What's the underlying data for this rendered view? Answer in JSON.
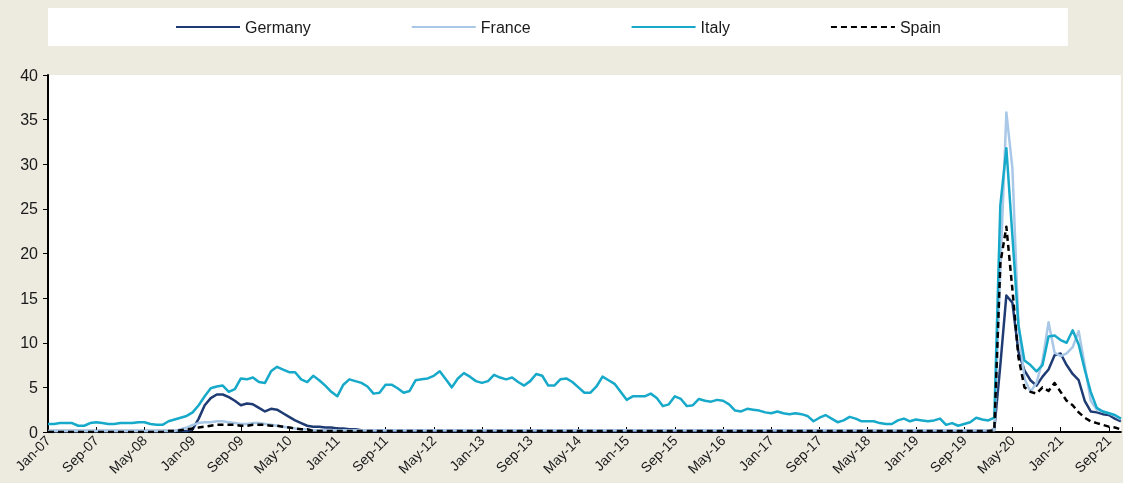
{
  "chart_data": {
    "type": "line",
    "categories": [
      "Jan-07",
      null,
      null,
      null,
      null,
      null,
      null,
      null,
      "Sep-07",
      null,
      null,
      null,
      null,
      null,
      null,
      null,
      "May-08",
      null,
      null,
      null,
      null,
      null,
      null,
      null,
      "Jan-09",
      null,
      null,
      null,
      null,
      null,
      null,
      null,
      "Sep-09",
      null,
      null,
      null,
      null,
      null,
      null,
      null,
      "May-10",
      null,
      null,
      null,
      null,
      null,
      null,
      null,
      "Jan-11",
      null,
      null,
      null,
      null,
      null,
      null,
      null,
      "Sep-11",
      null,
      null,
      null,
      null,
      null,
      null,
      null,
      "May-12",
      null,
      null,
      null,
      null,
      null,
      null,
      null,
      "Jan-13",
      null,
      null,
      null,
      null,
      null,
      null,
      null,
      "Sep-13",
      null,
      null,
      null,
      null,
      null,
      null,
      null,
      "May-14",
      null,
      null,
      null,
      null,
      null,
      null,
      null,
      "Jan-15",
      null,
      null,
      null,
      null,
      null,
      null,
      null,
      "Sep-15",
      null,
      null,
      null,
      null,
      null,
      null,
      null,
      "May-16",
      null,
      null,
      null,
      null,
      null,
      null,
      null,
      "Jan-17",
      null,
      null,
      null,
      null,
      null,
      null,
      null,
      "Sep-17",
      null,
      null,
      null,
      null,
      null,
      null,
      null,
      "May-18",
      null,
      null,
      null,
      null,
      null,
      null,
      null,
      "Jan-19",
      null,
      null,
      null,
      null,
      null,
      null,
      null,
      "Sep-19",
      null,
      null,
      null,
      null,
      null,
      null,
      null,
      "May-20",
      null,
      null,
      null,
      null,
      null,
      null,
      null,
      "Jan-21",
      null,
      null,
      null,
      null,
      null,
      null,
      null,
      "Sep-21",
      null,
      null
    ],
    "series": [
      {
        "name": "Germany",
        "color": "#1f3b73",
        "values": [
          0.1,
          0.1,
          0.1,
          0.1,
          0.1,
          0.1,
          0.1,
          0.1,
          0.1,
          0.1,
          0.1,
          0.1,
          0.1,
          0.1,
          0.1,
          0.1,
          0.1,
          0.1,
          0.1,
          0.1,
          0.1,
          0.1,
          0.1,
          0.1,
          0.3,
          1.5,
          3.0,
          3.8,
          4.2,
          4.2,
          3.9,
          3.5,
          3.0,
          3.2,
          3.1,
          2.7,
          2.3,
          2.6,
          2.5,
          2.1,
          1.7,
          1.3,
          1.0,
          0.7,
          0.6,
          0.6,
          0.5,
          0.5,
          0.4,
          0.4,
          0.3,
          0.3,
          0.2,
          0.2,
          0.1,
          0.1,
          0.1,
          0.1,
          0.1,
          0.1,
          0.1,
          0.1,
          0.1,
          0.1,
          0.1,
          0.1,
          0.1,
          0.1,
          0.1,
          0.1,
          0.1,
          0.1,
          0.1,
          0.1,
          0.1,
          0.1,
          0.1,
          0.1,
          0.1,
          0.1,
          0.1,
          0.1,
          0.1,
          0.1,
          0.1,
          0.1,
          0.1,
          0.1,
          0.1,
          0.1,
          0.1,
          0.1,
          0.1,
          0.1,
          0.1,
          0.1,
          0.1,
          0.1,
          0.1,
          0.1,
          0.1,
          0.1,
          0.1,
          0.1,
          0.1,
          0.1,
          0.1,
          0.1,
          0.1,
          0.1,
          0.1,
          0.1,
          0.1,
          0.1,
          0.1,
          0.1,
          0.1,
          0.1,
          0.1,
          0.1,
          0.1,
          0.1,
          0.1,
          0.1,
          0.1,
          0.1,
          0.1,
          0.1,
          0.1,
          0.1,
          0.1,
          0.1,
          0.1,
          0.1,
          0.1,
          0.1,
          0.1,
          0.1,
          0.1,
          0.1,
          0.1,
          0.1,
          0.1,
          0.1,
          0.1,
          0.1,
          0.1,
          0.1,
          0.1,
          0.1,
          0.1,
          0.1,
          0.1,
          0.1,
          0.1,
          0.1,
          0.1,
          0.3,
          7.5,
          15.3,
          14.5,
          9,
          6.9,
          5.8,
          5.2,
          6.2,
          7.0,
          8.6,
          8.8,
          7.5,
          6.5,
          5.8,
          3.5,
          2.3,
          2.2,
          2.0,
          1.9,
          1.5,
          1.2
        ]
      },
      {
        "name": "France",
        "color": "#a9c8e8",
        "values": [
          0.1,
          0.1,
          0.1,
          0.1,
          0.1,
          0.1,
          0.1,
          0.1,
          0.1,
          0.1,
          0.1,
          0.1,
          0.1,
          0.1,
          0.1,
          0.1,
          0.1,
          0.1,
          0.1,
          0.1,
          0.1,
          0.1,
          0.3,
          0.5,
          0.8,
          1.0,
          1.1,
          1.1,
          1.2,
          1.2,
          1.1,
          1.0,
          0.9,
          0.9,
          1.0,
          1.0,
          0.9,
          0.8,
          0.7,
          0.6,
          0.5,
          0.4,
          0.3,
          0.3,
          0.2,
          0.2,
          0.2,
          0.2,
          0.2,
          0.2,
          0.2,
          0.2,
          0.2,
          0.2,
          0.2,
          0.2,
          0.2,
          0.2,
          0.2,
          0.2,
          0.2,
          0.2,
          0.2,
          0.2,
          0.2,
          0.2,
          0.2,
          0.2,
          0.2,
          0.2,
          0.2,
          0.2,
          0.2,
          0.2,
          0.2,
          0.2,
          0.2,
          0.2,
          0.2,
          0.2,
          0.2,
          0.2,
          0.2,
          0.2,
          0.2,
          0.2,
          0.2,
          0.2,
          0.2,
          0.2,
          0.2,
          0.2,
          0.2,
          0.2,
          0.2,
          0.2,
          0.2,
          0.2,
          0.2,
          0.2,
          0.2,
          0.2,
          0.2,
          0.2,
          0.2,
          0.2,
          0.2,
          0.2,
          0.2,
          0.2,
          0.2,
          0.2,
          0.2,
          0.2,
          0.2,
          0.2,
          0.2,
          0.2,
          0.2,
          0.2,
          0.2,
          0.2,
          0.2,
          0.2,
          0.2,
          0.2,
          0.2,
          0.2,
          0.2,
          0.2,
          0.2,
          0.2,
          0.2,
          0.2,
          0.2,
          0.2,
          0.2,
          0.2,
          0.2,
          0.2,
          0.2,
          0.2,
          0.2,
          0.2,
          0.2,
          0.2,
          0.2,
          0.2,
          0.2,
          0.2,
          0.2,
          0.2,
          0.2,
          0.2,
          0.2,
          0.2,
          0.2,
          0.2,
          18,
          35.8,
          29.6,
          12,
          6,
          4.5,
          5.5,
          8,
          12.3,
          8.9,
          8.5,
          8.8,
          9.5,
          11.3,
          7.5,
          3.5,
          2.5,
          2.3,
          2.1,
          1.8,
          1.4
        ]
      },
      {
        "name": "Italy",
        "color": "#17a9c9",
        "values": [
          0.9,
          0.9,
          1.0,
          1.0,
          1.0,
          0.7,
          0.7,
          1.0,
          1.1,
          1.0,
          0.9,
          0.9,
          1.0,
          1.0,
          1.0,
          1.1,
          1.1,
          0.9,
          0.8,
          0.8,
          1.2,
          1.4,
          1.6,
          1.8,
          2.2,
          3.0,
          4.0,
          4.9,
          5.1,
          5.2,
          4.5,
          4.8,
          6.0,
          5.9,
          6.1,
          5.6,
          5.5,
          6.8,
          7.3,
          7.0,
          6.7,
          6.7,
          5.9,
          5.6,
          6.3,
          5.8,
          5.2,
          4.5,
          4.0,
          5.3,
          5.9,
          5.7,
          5.5,
          5.1,
          4.3,
          4.4,
          5.3,
          5.3,
          4.9,
          4.4,
          4.6,
          5.8,
          5.9,
          6.0,
          6.3,
          6.8,
          5.9,
          5.0,
          6.0,
          6.6,
          6.2,
          5.7,
          5.5,
          5.7,
          6.4,
          6.1,
          5.9,
          6.1,
          5.6,
          5.2,
          5.7,
          6.5,
          6.3,
          5.2,
          5.2,
          5.9,
          6.0,
          5.6,
          5.0,
          4.4,
          4.4,
          5.1,
          6.2,
          5.8,
          5.4,
          4.5,
          3.6,
          4.0,
          4.0,
          4.0,
          4.3,
          3.8,
          2.9,
          3.1,
          4.0,
          3.7,
          2.9,
          3.0,
          3.7,
          3.5,
          3.4,
          3.6,
          3.5,
          3.1,
          2.4,
          2.3,
          2.6,
          2.5,
          2.4,
          2.2,
          2.1,
          2.3,
          2.1,
          2.0,
          2.1,
          2.0,
          1.8,
          1.2,
          1.6,
          1.9,
          1.5,
          1.1,
          1.3,
          1.7,
          1.5,
          1.2,
          1.2,
          1.2,
          1.0,
          0.9,
          0.9,
          1.3,
          1.5,
          1.2,
          1.4,
          1.3,
          1.2,
          1.3,
          1.5,
          0.8,
          1.0,
          0.7,
          0.9,
          1.1,
          1.6,
          1.4,
          1.3,
          1.6,
          25.4,
          31.8,
          22,
          12,
          8,
          7.5,
          6.8,
          7.5,
          10.7,
          10.8,
          10.3,
          10.0,
          11.4,
          9.8,
          7.0,
          4.5,
          2.7,
          2.3,
          2.1,
          1.9,
          1.5
        ]
      },
      {
        "name": "Spain",
        "color": "#000000",
        "line_style": "dashed",
        "values": [
          0,
          0,
          0,
          0,
          0,
          0,
          0,
          0,
          0,
          0,
          0,
          0,
          0,
          0,
          0,
          0,
          0,
          0,
          0,
          0,
          0.1,
          0.1,
          0.2,
          0.3,
          0.4,
          0.5,
          0.6,
          0.7,
          0.8,
          0.8,
          0.8,
          0.8,
          0.7,
          0.7,
          0.8,
          0.8,
          0.8,
          0.7,
          0.7,
          0.6,
          0.5,
          0.4,
          0.3,
          0.3,
          0.1,
          0.1,
          0.1,
          0.1,
          0.1,
          0.1,
          0.1,
          0.1,
          0.1,
          0.1,
          0.1,
          0.1,
          0.1,
          0.1,
          0.1,
          0.1,
          0.1,
          0.1,
          0.1,
          0.1,
          0.1,
          0.1,
          0.1,
          0.1,
          0.1,
          0.1,
          0.1,
          0.1,
          0.1,
          0.1,
          0.1,
          0.1,
          0.1,
          0.1,
          0.1,
          0.1,
          0.1,
          0.1,
          0.1,
          0.1,
          0.1,
          0.1,
          0.1,
          0.1,
          0.1,
          0.1,
          0.1,
          0.1,
          0.1,
          0.1,
          0.1,
          0.1,
          0.1,
          0.1,
          0.1,
          0.1,
          0.1,
          0.1,
          0.1,
          0.1,
          0.1,
          0.1,
          0.1,
          0.1,
          0.1,
          0.1,
          0.1,
          0.1,
          0.1,
          0.1,
          0.1,
          0.1,
          0.1,
          0.1,
          0.1,
          0.1,
          0.1,
          0.1,
          0.1,
          0.1,
          0.1,
          0.1,
          0.1,
          0.1,
          0.1,
          0.1,
          0.1,
          0.1,
          0.1,
          0.1,
          0.1,
          0.1,
          0.1,
          0.1,
          0.1,
          0.1,
          0.1,
          0.1,
          0.1,
          0.1,
          0.1,
          0.1,
          0.1,
          0.1,
          0.1,
          0.1,
          0.1,
          0.1,
          0.1,
          0.1,
          0.1,
          0.1,
          0.1,
          0.2,
          18.9,
          23,
          16,
          8.4,
          5,
          4.5,
          4.3,
          5,
          4.6,
          5.5,
          4.5,
          3.5,
          3.0,
          2.2,
          1.6,
          1.2,
          1.0,
          0.8,
          0.6,
          0.5,
          0.3
        ]
      }
    ],
    "ylim": [
      0,
      40
    ],
    "yticks": [
      0,
      5,
      10,
      15,
      20,
      25,
      30,
      35,
      40
    ],
    "legend": "top",
    "marker": "none"
  }
}
